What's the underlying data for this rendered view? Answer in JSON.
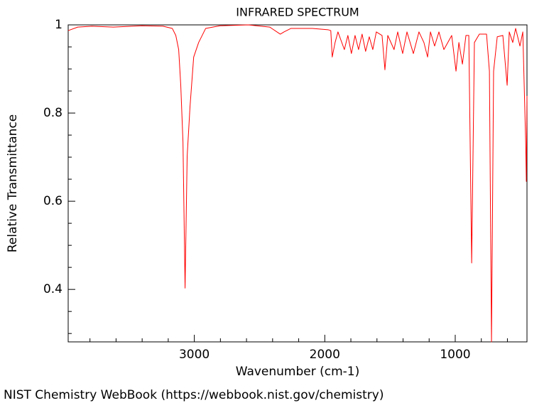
{
  "chart_data": {
    "type": "line",
    "title": "INFRARED SPECTRUM",
    "x_label": "Wavenumber (cm-1)",
    "y_label": "Relative Transmittance",
    "source": "NIST Chemistry WebBook (https://webbook.nist.gov/chemistry)",
    "color": "#ff0000",
    "xlim": [
      3967,
      450
    ],
    "ylim": [
      0.281,
      1
    ],
    "xticks": [
      3000,
      2000,
      1000
    ],
    "yticks": [
      1,
      0.8,
      0.6,
      0.4
    ],
    "xminor_ticks": [
      3800,
      3600,
      3400,
      3200,
      2800,
      2600,
      2400,
      2200,
      1800,
      1600,
      1400,
      1200,
      800,
      600
    ],
    "yminor_ticks": [
      0.95,
      0.9,
      0.85,
      0.75,
      0.7,
      0.65,
      0.55,
      0.5,
      0.45,
      0.35,
      0.3
    ],
    "x": [
      3967,
      3894,
      3785,
      3621,
      3403,
      3240,
      3169,
      3142,
      3120,
      3104,
      3087,
      3071,
      3055,
      3033,
      3005,
      2967,
      2913,
      2804,
      2586,
      2422,
      2341,
      2313,
      2259,
      2095,
      1975,
      1954,
      1943,
      1921,
      1899,
      1850,
      1823,
      1796,
      1768,
      1741,
      1714,
      1687,
      1659,
      1632,
      1605,
      1561,
      1539,
      1517,
      1469,
      1441,
      1403,
      1370,
      1321,
      1278,
      1240,
      1212,
      1190,
      1158,
      1125,
      1087,
      1027,
      994,
      972,
      945,
      918,
      896,
      874,
      853,
      815,
      760,
      738,
      722,
      706,
      678,
      635,
      602,
      586,
      559,
      537,
      504,
      482,
      460,
      455,
      450
    ],
    "values": [
      0.987,
      0.995,
      0.997,
      0.995,
      0.998,
      0.997,
      0.992,
      0.976,
      0.944,
      0.863,
      0.734,
      0.403,
      0.702,
      0.815,
      0.927,
      0.96,
      0.992,
      0.998,
      1.0,
      0.995,
      0.979,
      0.984,
      0.992,
      0.992,
      0.989,
      0.987,
      0.927,
      0.96,
      0.984,
      0.944,
      0.976,
      0.935,
      0.976,
      0.944,
      0.979,
      0.94,
      0.973,
      0.944,
      0.984,
      0.976,
      0.898,
      0.976,
      0.944,
      0.984,
      0.935,
      0.984,
      0.935,
      0.984,
      0.96,
      0.927,
      0.984,
      0.952,
      0.984,
      0.944,
      0.976,
      0.895,
      0.96,
      0.911,
      0.976,
      0.976,
      0.46,
      0.96,
      0.979,
      0.979,
      0.895,
      0.281,
      0.895,
      0.973,
      0.976,
      0.863,
      0.984,
      0.96,
      0.992,
      0.952,
      0.984,
      0.734,
      0.645,
      0.839
    ]
  }
}
